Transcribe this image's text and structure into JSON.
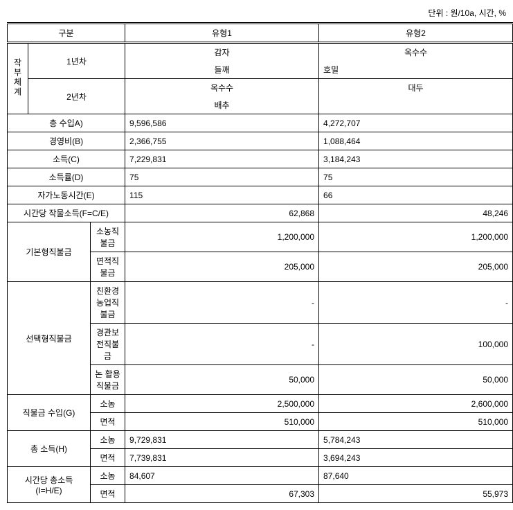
{
  "unit": "단위 : 원/10a, 시간, %",
  "headers": {
    "gubun": "구분",
    "type1": "유형1",
    "type2": "유형2"
  },
  "cropSystem": {
    "label": "작부체계",
    "year1": {
      "label": "1년차",
      "type1_a": "감자",
      "type1_b": "들깨",
      "type2_a": "옥수수",
      "type2_b": "호밀"
    },
    "year2": {
      "label": "2년차",
      "type1_a": "옥수수",
      "type1_b": "배추",
      "type2_a": "대두",
      "type2_b": ""
    }
  },
  "rows": {
    "totalRevenue": {
      "label": "총 수입A)",
      "v1": "9,596,586",
      "v2": "4,272,707"
    },
    "operatingCost": {
      "label": "경영비(B)",
      "v1": "2,366,755",
      "v2": "1,088,464"
    },
    "income": {
      "label": "소득(C)",
      "v1": "7,229,831",
      "v2": "3,184,243"
    },
    "incomeRate": {
      "label": "소득률(D)",
      "v1": "75",
      "v2": "75"
    },
    "selfLabor": {
      "label": "자가노동시간(E)",
      "v1": "115",
      "v2": "66"
    },
    "hourlyIncome": {
      "label": "시간당 작물소득(F=C/E)",
      "v1": "62,868",
      "v2": "48,246"
    }
  },
  "basicPayment": {
    "label": "기본형직불금",
    "small": {
      "label": "소농직불금",
      "v1": "1,200,000",
      "v2": "1,200,000"
    },
    "area": {
      "label": "면적직불금",
      "v1": "205,000",
      "v2": "205,000"
    }
  },
  "selectivePayment": {
    "label": "선택형직불금",
    "eco": {
      "label": "친환경농업직불금",
      "v1": "-",
      "v2": "-"
    },
    "landscape": {
      "label": "경관보전직불금",
      "v1": "-",
      "v2": "100,000"
    },
    "paddy": {
      "label": "논 활용 직불금",
      "v1": "50,000",
      "v2": "50,000"
    }
  },
  "paymentRevenue": {
    "label": "직불금 수입(G)",
    "small": {
      "label": "소농",
      "v1": "2,500,000",
      "v2": "2,600,000"
    },
    "area": {
      "label": "면적",
      "v1": "510,000",
      "v2": "510,000"
    }
  },
  "totalIncome": {
    "label": "총 소득(H)",
    "small": {
      "label": "소농",
      "v1": "9,729,831",
      "v2": "5,784,243"
    },
    "area": {
      "label": "면적",
      "v1": "7,739,831",
      "v2": "3,694,243"
    }
  },
  "hourlyTotal": {
    "label": "시간당 총소득(I=H/E)",
    "small": {
      "label": "소농",
      "v1": "84,607",
      "v2": "87,640"
    },
    "area": {
      "label": "면적",
      "v1": "67,303",
      "v2": "55,973"
    }
  }
}
